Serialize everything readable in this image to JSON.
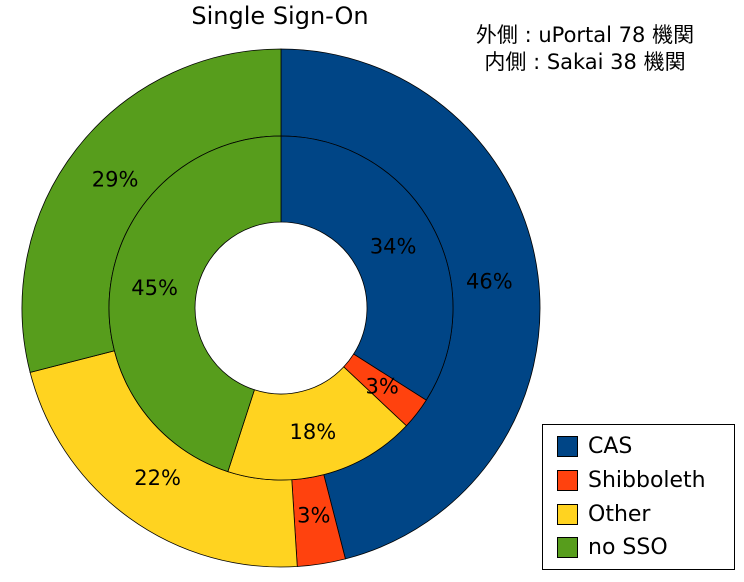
{
  "chart_data": {
    "type": "pie",
    "title": "Single Sign-On",
    "annotation": [
      "外側 : uPortal 78 機関",
      "内側 : Sakai 38 機関"
    ],
    "categories": [
      "CAS",
      "Shibboleth",
      "Other",
      "no SSO"
    ],
    "colors": [
      "#004586",
      "#ff420e",
      "#ffd320",
      "#579d1c"
    ],
    "series": [
      {
        "name": "uPortal",
        "ring": "outer",
        "values": [
          46,
          3,
          22,
          29
        ],
        "labels": [
          "46%",
          "3%",
          "22%",
          "29%"
        ]
      },
      {
        "name": "Sakai",
        "ring": "inner",
        "values": [
          34,
          3,
          18,
          45
        ],
        "labels": [
          "34%",
          "3%",
          "18%",
          "45%"
        ]
      }
    ],
    "legend": {
      "position": "bottom-right"
    }
  }
}
